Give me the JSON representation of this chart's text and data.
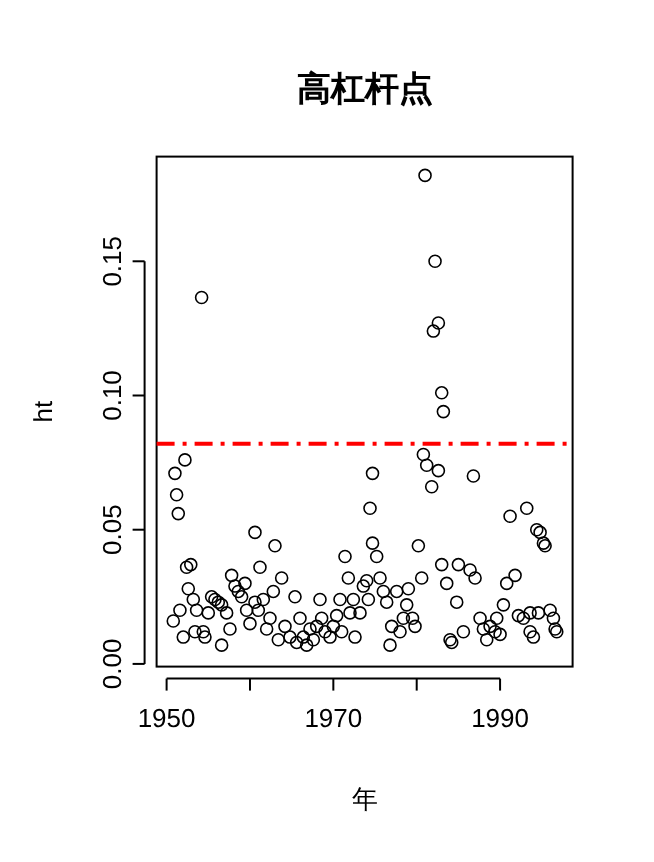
{
  "chart_data": {
    "type": "scatter",
    "title": "高杠杆点",
    "xlabel": "年",
    "ylabel": "ht",
    "marker": "circle",
    "grid": false,
    "xlim": [
      1948.8,
      1998.7
    ],
    "ylim": [
      -0.001,
      0.189
    ],
    "xticks": [
      1950,
      {
        "value": 1960,
        "label": null
      },
      1970,
      {
        "value": 1980,
        "label": null
      },
      1990
    ],
    "yticks": [
      {
        "value": 0,
        "label": "0.00"
      },
      {
        "value": 0.05,
        "label": "0.05"
      },
      {
        "value": 0.1,
        "label": "0.10"
      },
      {
        "value": 0.15,
        "label": "0.15"
      }
    ],
    "ref_lines": [
      {
        "axis": "y",
        "value": 0.082,
        "color": "#ff0000",
        "line_style": "dashed"
      }
    ],
    "series": [
      {
        "color": "#000000",
        "x": [
          1950.8,
          1951.0,
          1951.2,
          1951.4,
          1952.2,
          1951.6,
          1952.0,
          1952.4,
          1952.9,
          1952.6,
          1953.2,
          1953.6,
          1953.4,
          1954.2,
          1954.4,
          1954.6,
          1955.0,
          1955.4,
          1955.8,
          1956.2,
          1956.6,
          1956.6,
          1957.2,
          1957.6,
          1957.8,
          1958.2,
          1958.6,
          1959.0,
          1959.4,
          1959.6,
          1960.0,
          1960.6,
          1960.6,
          1961.0,
          1961.2,
          1961.6,
          1962.0,
          1962.4,
          1962.8,
          1963.0,
          1963.4,
          1963.8,
          1964.2,
          1964.8,
          1965.4,
          1965.6,
          1966.0,
          1966.4,
          1966.8,
          1967.2,
          1967.6,
          1968.0,
          1968.4,
          1968.6,
          1969.0,
          1969.6,
          1970.0,
          1970.4,
          1970.8,
          1971.0,
          1971.4,
          1971.8,
          1972.0,
          1972.4,
          1972.6,
          1973.2,
          1973.6,
          1974.0,
          1974.2,
          1974.7,
          1974.4,
          1974.7,
          1975.2,
          1975.6,
          1976.0,
          1976.4,
          1976.8,
          1977.0,
          1977.6,
          1978.0,
          1978.4,
          1978.8,
          1979.0,
          1979.5,
          1979.8,
          1980.2,
          1980.6,
          1980.8,
          1981.2,
          1981.8,
          1982.6,
          1981.0,
          1982.2,
          1982.0,
          1982.6,
          1983.0,
          1983.2,
          1983.0,
          1983.6,
          1984.0,
          1984.2,
          1984.8,
          1985.0,
          1985.6,
          1986.4,
          1986.8,
          1987.0,
          1987.6,
          1988.0,
          1988.4,
          1988.8,
          1989.4,
          1989.6,
          1990.0,
          1990.4,
          1990.8,
          1991.2,
          1991.8,
          1992.2,
          1992.8,
          1993.2,
          1993.6,
          1993.6,
          1994.0,
          1994.4,
          1994.6,
          1994.8,
          1995.2,
          1995.4,
          1996.0,
          1996.4,
          1996.6,
          1996.8
        ],
        "values": [
          0.016,
          0.071,
          0.063,
          0.056,
          0.076,
          0.02,
          0.01,
          0.036,
          0.037,
          0.028,
          0.024,
          0.02,
          0.012,
          0.1365,
          0.012,
          0.01,
          0.019,
          0.025,
          0.024,
          0.023,
          0.022,
          0.007,
          0.019,
          0.013,
          0.033,
          0.029,
          0.027,
          0.025,
          0.03,
          0.02,
          0.015,
          0.049,
          0.023,
          0.02,
          0.036,
          0.024,
          0.013,
          0.017,
          0.027,
          0.044,
          0.009,
          0.032,
          0.014,
          0.01,
          0.025,
          0.008,
          0.017,
          0.01,
          0.007,
          0.013,
          0.009,
          0.014,
          0.024,
          0.017,
          0.012,
          0.01,
          0.014,
          0.018,
          0.024,
          0.012,
          0.04,
          0.032,
          0.019,
          0.024,
          0.01,
          0.019,
          0.029,
          0.031,
          0.024,
          0.071,
          0.058,
          0.045,
          0.04,
          0.032,
          0.027,
          0.023,
          0.007,
          0.014,
          0.027,
          0.012,
          0.017,
          0.022,
          0.028,
          0.017,
          0.014,
          0.044,
          0.032,
          0.078,
          0.074,
          0.066,
          0.072,
          0.182,
          0.15,
          0.124,
          0.127,
          0.101,
          0.094,
          0.037,
          0.03,
          0.009,
          0.008,
          0.023,
          0.037,
          0.012,
          0.035,
          0.07,
          0.032,
          0.017,
          0.013,
          0.009,
          0.014,
          0.012,
          0.017,
          0.011,
          0.022,
          0.03,
          0.055,
          0.033,
          0.018,
          0.017,
          0.058,
          0.019,
          0.012,
          0.01,
          0.05,
          0.019,
          0.049,
          0.045,
          0.044,
          0.02,
          0.017,
          0.013,
          0.012
        ]
      }
    ]
  }
}
